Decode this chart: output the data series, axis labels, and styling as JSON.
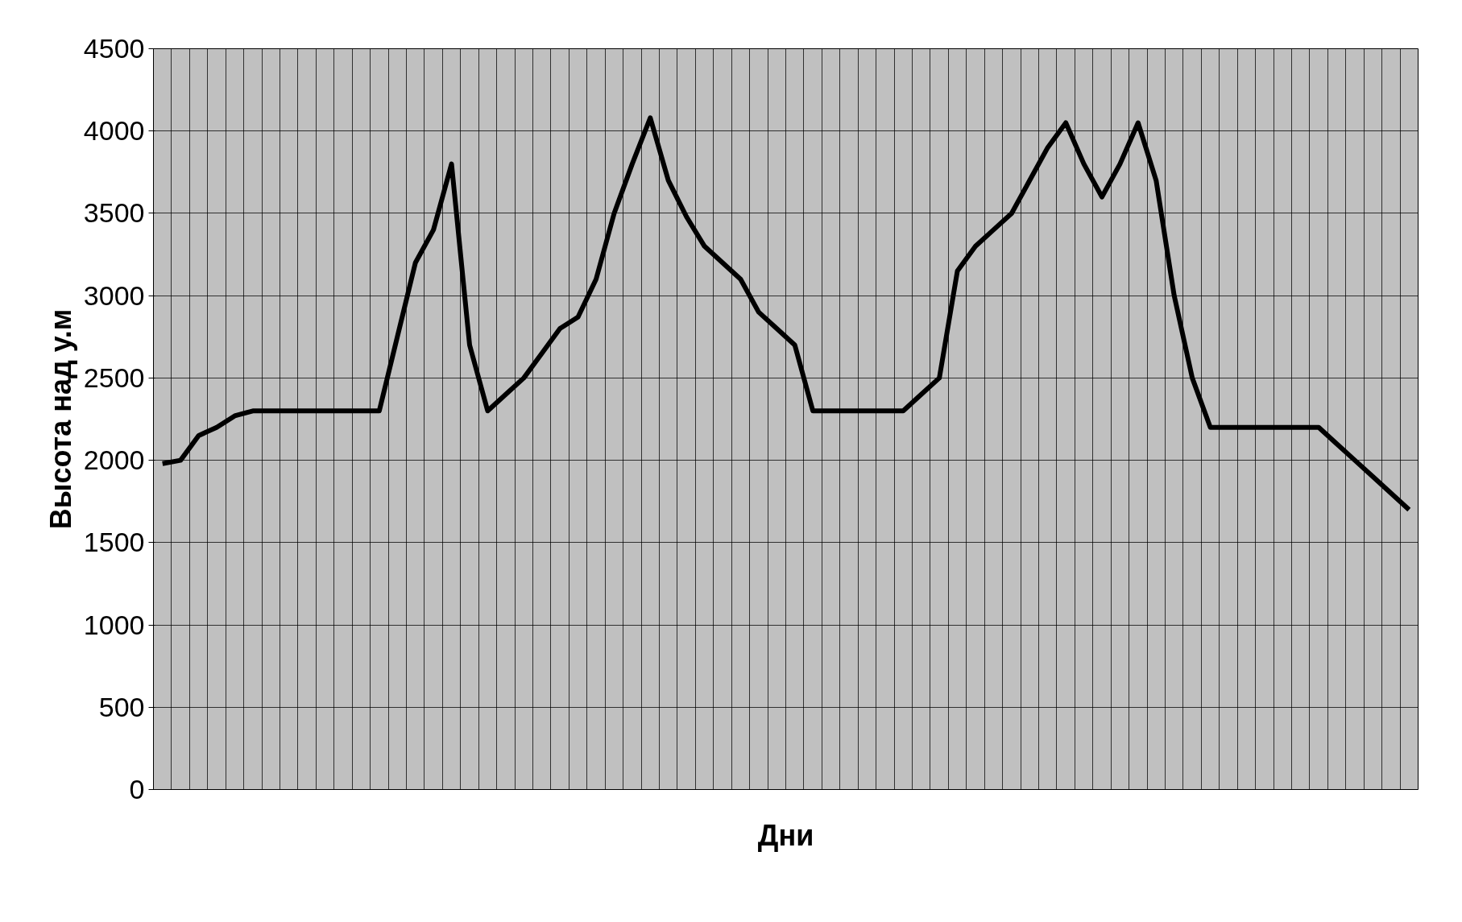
{
  "chart_data": {
    "type": "line",
    "xlabel": "Дни",
    "ylabel": "Высота над у.м",
    "categories": [
      null,
      null,
      null,
      null,
      null,
      null,
      null,
      null,
      null,
      null,
      null,
      null,
      null,
      null,
      null,
      null,
      null,
      null,
      null,
      null,
      null,
      null,
      null,
      null,
      null,
      null,
      null,
      null,
      null,
      null,
      null,
      null,
      null,
      null,
      null,
      null,
      null,
      null,
      null,
      null,
      null,
      null,
      null,
      null,
      null,
      null,
      null,
      null,
      null,
      null,
      null,
      null,
      null,
      null,
      null,
      null,
      null,
      null,
      null,
      null,
      null,
      null,
      null,
      null,
      null,
      null,
      null,
      null,
      null,
      null
    ],
    "series": [
      {
        "color": "#000000",
        "values": [
          1980,
          2000,
          2150,
          2200,
          2270,
          2300,
          2300,
          2300,
          2300,
          2300,
          2300,
          2300,
          2300,
          2750,
          3200,
          3400,
          3800,
          2700,
          2300,
          2400,
          2500,
          2650,
          2800,
          2870,
          3100,
          3500,
          3800,
          4080,
          3700,
          3480,
          3300,
          3200,
          3100,
          2900,
          2800,
          2700,
          2300,
          2300,
          2300,
          2300,
          2300,
          2300,
          2400,
          2500,
          3150,
          3300,
          3400,
          3500,
          3700,
          3900,
          4050,
          3800,
          3600,
          3800,
          4050,
          3700,
          3000,
          2500,
          2200,
          2200,
          2200,
          2200,
          2200,
          2200,
          2200,
          2100,
          2000,
          1900,
          1800,
          1700
        ]
      }
    ],
    "ylim": [
      0,
      4500
    ],
    "yticks": [
      0,
      500,
      1000,
      1500,
      2000,
      2500,
      3000,
      3500,
      4000,
      4500
    ],
    "grid": true,
    "marker": "none",
    "line_style": "solid"
  }
}
